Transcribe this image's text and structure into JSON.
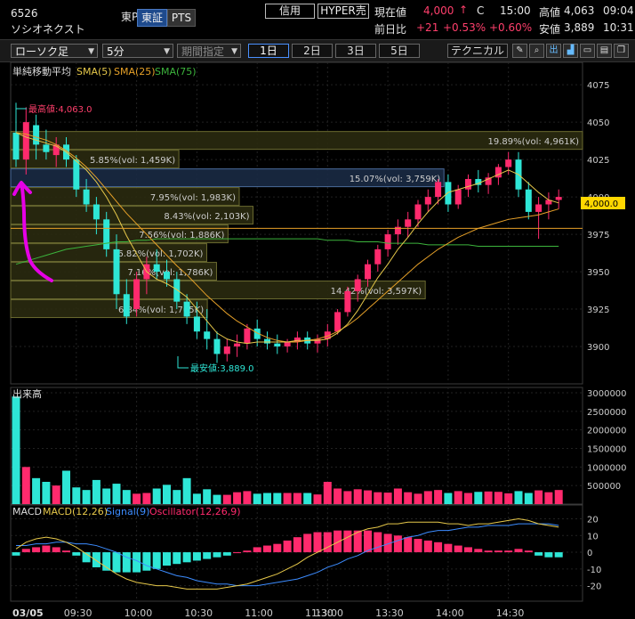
{
  "header": {
    "code": "6526",
    "name": "ソシオネクスト",
    "market": "東P",
    "tab_tosho": "東証",
    "tab_pts": "PTS",
    "btn_shinyo": "信用",
    "btn_hyper": "HYPER売",
    "price_label": "現在値",
    "price": "4,000",
    "price_arrow": "↑",
    "price_flag": "C",
    "price_time": "15:00",
    "high_label": "高値",
    "high_value": "4,063",
    "high_time": "09:04",
    "change_label": "前日比",
    "change": "+21",
    "change_pct1": "+0.53%",
    "change_pct2": "+0.60%",
    "low_label": "安値",
    "low_value": "3,889",
    "low_time": "10:31"
  },
  "toolbar": {
    "chart_type": "ローソク足",
    "interval": "5分",
    "period_placeholder": "期間指定",
    "periods": [
      "1日",
      "2日",
      "3日",
      "5日"
    ],
    "active_period": "1日",
    "technical": "テクニカル",
    "icons": [
      "pencil-icon",
      "zoom-icon",
      "output-icon",
      "chart-style-icon",
      "folder-icon",
      "save-icon",
      "copy-icon"
    ]
  },
  "colors": {
    "up": "#ff2a6d",
    "down": "#2ee6d6",
    "sma5": "#e6c84a",
    "sma25": "#e6a028",
    "sma75": "#3cb43c",
    "macd": "#e6c84a",
    "signal": "#3c8cff",
    "osc": "#ff2a6d",
    "price_box": "#ffd700"
  },
  "price_chart": {
    "legend_title": "単純移動平均",
    "legend_sma5": "SMA(5)",
    "legend_sma25": "SMA(25)",
    "legend_sma75": "SMA(75)",
    "yticks": [
      "4075",
      "4050",
      "4025",
      "4000",
      "3975",
      "3950",
      "3925",
      "3900"
    ],
    "current_price_label": "4,000.0",
    "high_annotation": "最高値:4,063.0",
    "low_annotation": "最安値:3,889.0"
  },
  "volume_chart": {
    "title": "出来高",
    "yticks": [
      "3000000",
      "2500000",
      "2000000",
      "1500000",
      "1000000",
      "500000"
    ]
  },
  "macd_chart": {
    "title": "MACD",
    "legend_macd": "MACD(12,26)",
    "legend_signal": "Signal(9)",
    "legend_osc": "Oscillator(12,26,9)",
    "yticks": [
      "20",
      "10",
      "0",
      "-10",
      "-20"
    ]
  },
  "xaxis": {
    "date_label": "03/05",
    "ticks": [
      "09:30",
      "10:00",
      "10:30",
      "11:00",
      "11:30",
      "13:00",
      "13:30",
      "14:00",
      "14:30"
    ]
  },
  "chart_data": [
    {
      "type": "candlestick",
      "ylim": [
        3875,
        4090
      ],
      "candles": [
        [
          4043,
          4063,
          4020,
          4025
        ],
        [
          4025,
          4060,
          4015,
          4050
        ],
        [
          4048,
          4055,
          4025,
          4035
        ],
        [
          4035,
          4045,
          4025,
          4030
        ],
        [
          4028,
          4040,
          4020,
          4035
        ],
        [
          4035,
          4040,
          4020,
          4025
        ],
        [
          4025,
          4028,
          4000,
          4005
        ],
        [
          4005,
          4012,
          3990,
          3995
        ],
        [
          3995,
          4000,
          3975,
          3985
        ],
        [
          3985,
          3990,
          3960,
          3965
        ],
        [
          3965,
          3975,
          3925,
          3935
        ],
        [
          3935,
          3945,
          3915,
          3920
        ],
        [
          3925,
          3950,
          3920,
          3945
        ],
        [
          3945,
          3960,
          3935,
          3955
        ],
        [
          3955,
          3965,
          3945,
          3950
        ],
        [
          3950,
          3958,
          3940,
          3945
        ],
        [
          3945,
          3950,
          3925,
          3930
        ],
        [
          3930,
          3935,
          3915,
          3920
        ],
        [
          3920,
          3930,
          3905,
          3910
        ],
        [
          3910,
          3925,
          3898,
          3905
        ],
        [
          3905,
          3910,
          3889,
          3895
        ],
        [
          3895,
          3905,
          3890,
          3900
        ],
        [
          3900,
          3908,
          3893,
          3902
        ],
        [
          3902,
          3915,
          3898,
          3912
        ],
        [
          3912,
          3918,
          3900,
          3905
        ],
        [
          3905,
          3910,
          3898,
          3902
        ],
        [
          3902,
          3908,
          3895,
          3900
        ],
        [
          3900,
          3905,
          3896,
          3903
        ],
        [
          3903,
          3910,
          3898,
          3906
        ],
        [
          3906,
          3910,
          3898,
          3902
        ],
        [
          3902,
          3908,
          3896,
          3905
        ],
        [
          3905,
          3915,
          3900,
          3910
        ],
        [
          3910,
          3925,
          3908,
          3923
        ],
        [
          3923,
          3940,
          3920,
          3937
        ],
        [
          3937,
          3948,
          3930,
          3945
        ],
        [
          3945,
          3958,
          3940,
          3955
        ],
        [
          3955,
          3968,
          3950,
          3965
        ],
        [
          3965,
          3978,
          3960,
          3975
        ],
        [
          3975,
          3985,
          3968,
          3980
        ],
        [
          3980,
          3990,
          3973,
          3985
        ],
        [
          3985,
          3998,
          3980,
          3995
        ],
        [
          3995,
          4005,
          3990,
          4000
        ],
        [
          4000,
          4012,
          3995,
          4010
        ],
        [
          4010,
          4015,
          3990,
          3995
        ],
        [
          3995,
          4008,
          3992,
          4005
        ],
        [
          4005,
          4015,
          4000,
          4012
        ],
        [
          4012,
          4018,
          4003,
          4008
        ],
        [
          4008,
          4016,
          4002,
          4013
        ],
        [
          4013,
          4022,
          4008,
          4020
        ],
        [
          4020,
          4030,
          4015,
          4025
        ],
        [
          4025,
          4030,
          4000,
          4005
        ],
        [
          4005,
          4010,
          3985,
          3990
        ],
        [
          3990,
          4000,
          3972,
          3995
        ],
        [
          3995,
          4003,
          3985,
          3998
        ],
        [
          3998,
          4005,
          3992,
          4000
        ]
      ],
      "sma5": [
        4043,
        4040,
        4038,
        4036,
        4034,
        4030,
        4024,
        4018,
        4010,
        4000,
        3988,
        3974,
        3962,
        3950,
        3945,
        3942,
        3938,
        3933,
        3925,
        3917,
        3909,
        3905,
        3903,
        3902,
        3903,
        3903,
        3903,
        3903,
        3904,
        3904,
        3904,
        3905,
        3909,
        3915,
        3924,
        3935,
        3946,
        3955,
        3965,
        3973,
        3982,
        3990,
        3997,
        4003,
        4005,
        4007,
        4009,
        4012,
        4015,
        4018,
        4015,
        4009,
        4003,
        3998,
        3996
      ],
      "sma25": [
        4043,
        4042,
        4040,
        4038,
        4035,
        4031,
        4026,
        4020,
        4013,
        4005,
        3997,
        3989,
        3982,
        3975,
        3968,
        3961,
        3954,
        3948,
        3941,
        3934,
        3928,
        3922,
        3917,
        3913,
        3909,
        3906,
        3904,
        3903,
        3903,
        3904,
        3905,
        3907,
        3910,
        3914,
        3919,
        3925,
        3931,
        3937,
        3943,
        3949,
        3955,
        3960,
        3965,
        3969,
        3973,
        3976,
        3979,
        3981,
        3983,
        3985,
        3986,
        3987,
        3988,
        3990,
        3992
      ],
      "sma75": [
        3955,
        3957,
        3959,
        3961,
        3963,
        3965,
        3966,
        3967,
        3968,
        3969,
        3970,
        3970,
        3971,
        3971,
        3972,
        3972,
        3972,
        3972,
        3972,
        3972,
        3972,
        3972,
        3972,
        3972,
        3972,
        3972,
        3972,
        3972,
        3972,
        3972,
        3972,
        3971,
        3971,
        3971,
        3970,
        3970,
        3970,
        3969,
        3969,
        3969,
        3969,
        3968,
        3968,
        3968,
        3968,
        3968,
        3967,
        3967,
        3967,
        3967,
        3967,
        3967,
        3967,
        3967,
        3967
      ],
      "volume_profile": [
        {
          "label": "19.89%(vol: 4,961K)",
          "pct": 19.89,
          "price": 4037.5
        },
        {
          "label": "5.85%(vol: 1,459K)",
          "pct": 5.85,
          "price": 4025
        },
        {
          "label": "15.07%(vol: 3,759K)",
          "pct": 15.07,
          "price": 4012.5
        },
        {
          "label": "7.95%(vol: 1,983K)",
          "pct": 7.95,
          "price": 4000
        },
        {
          "label": "8.43%(vol: 2,103K)",
          "pct": 8.43,
          "price": 3987.5
        },
        {
          "label": "7.56%(vol: 1,886K)",
          "pct": 7.56,
          "price": 3975
        },
        {
          "label": "6.82%(vol: 1,702K)",
          "pct": 6.82,
          "price": 3962.5
        },
        {
          "label": "7.16%(vol: 1,786K)",
          "pct": 7.16,
          "price": 3950
        },
        {
          "label": "14.42%(vol: 3,597K)",
          "pct": 14.42,
          "price": 3937.5
        },
        {
          "label": "6.84%(vol: 1,705K)",
          "pct": 6.84,
          "price": 3925
        }
      ]
    },
    {
      "type": "bar",
      "ylim": [
        0,
        3000000
      ],
      "values": [
        2900000,
        1000000,
        700000,
        600000,
        500000,
        900000,
        450000,
        380000,
        650000,
        420000,
        550000,
        380000,
        280000,
        300000,
        420000,
        520000,
        380000,
        700000,
        280000,
        400000,
        250000,
        250000,
        320000,
        350000,
        280000,
        300000,
        300000,
        300000,
        300000,
        300000,
        260000,
        600000,
        420000,
        350000,
        400000,
        370000,
        320000,
        310000,
        420000,
        320000,
        280000,
        350000,
        380000,
        300000,
        350000,
        300000,
        330000,
        340000,
        330000,
        290000,
        350000,
        300000,
        370000,
        320000,
        380000
      ]
    },
    {
      "type": "line",
      "ylim": [
        -25,
        24
      ],
      "macd": [
        2,
        6,
        8,
        9,
        8,
        6,
        3,
        -1,
        -5,
        -9,
        -13,
        -16,
        -18,
        -19,
        -20,
        -20,
        -21,
        -22,
        -22,
        -22,
        -22,
        -21,
        -20,
        -19,
        -17,
        -15,
        -13,
        -10,
        -7,
        -3,
        0,
        3,
        6,
        9,
        12,
        14,
        15,
        17,
        17,
        18,
        18,
        18,
        18,
        17,
        17,
        16,
        17,
        17,
        18,
        19,
        20,
        19,
        17,
        16,
        15
      ],
      "signal": [
        4,
        4,
        5,
        5,
        6,
        6,
        5,
        5,
        4,
        2,
        0,
        -3,
        -5,
        -8,
        -10,
        -12,
        -14,
        -15,
        -17,
        -18,
        -19,
        -19,
        -20,
        -20,
        -20,
        -19,
        -18,
        -17,
        -16,
        -14,
        -12,
        -9,
        -7,
        -4,
        -2,
        1,
        3,
        5,
        7,
        9,
        10,
        12,
        13,
        13,
        14,
        15,
        15,
        16,
        16,
        16,
        17,
        17,
        17,
        17,
        16
      ],
      "oscillator": [
        -2,
        2,
        3,
        4,
        3,
        1,
        -2,
        -6,
        -9,
        -11,
        -12,
        -12,
        -12,
        -11,
        -10,
        -8,
        -7,
        -6,
        -5,
        -4,
        -3,
        -2,
        0,
        1,
        3,
        4,
        5,
        7,
        9,
        11,
        12,
        12,
        13,
        13,
        13,
        13,
        12,
        11,
        10,
        9,
        8,
        7,
        6,
        5,
        4,
        3,
        2,
        1,
        1,
        1,
        2,
        1,
        -2,
        -3,
        -3
      ]
    }
  ]
}
